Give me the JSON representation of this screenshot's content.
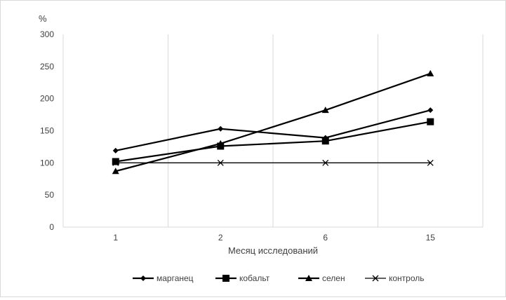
{
  "chart_data": {
    "type": "line",
    "ylabel": "%",
    "xlabel": "Месяц исследований",
    "categories": [
      "1",
      "2",
      "6",
      "15"
    ],
    "ylim": [
      0,
      300
    ],
    "yticks": [
      0,
      50,
      100,
      150,
      200,
      250,
      300
    ],
    "grid": "vertical",
    "legend": "bottom",
    "series": [
      {
        "name": "марганец",
        "marker": "diamond",
        "values": [
          119,
          153,
          139,
          182
        ]
      },
      {
        "name": "кобальт",
        "marker": "square",
        "values": [
          102,
          126,
          134,
          164
        ]
      },
      {
        "name": "селен",
        "marker": "triangle",
        "values": [
          87,
          130,
          182,
          239
        ]
      },
      {
        "name": "контроль",
        "marker": "x",
        "values": [
          100,
          100,
          100,
          100
        ]
      }
    ],
    "colors": {
      "line": "#000000",
      "grid": "#d9d9d9",
      "text": "#404040"
    }
  }
}
